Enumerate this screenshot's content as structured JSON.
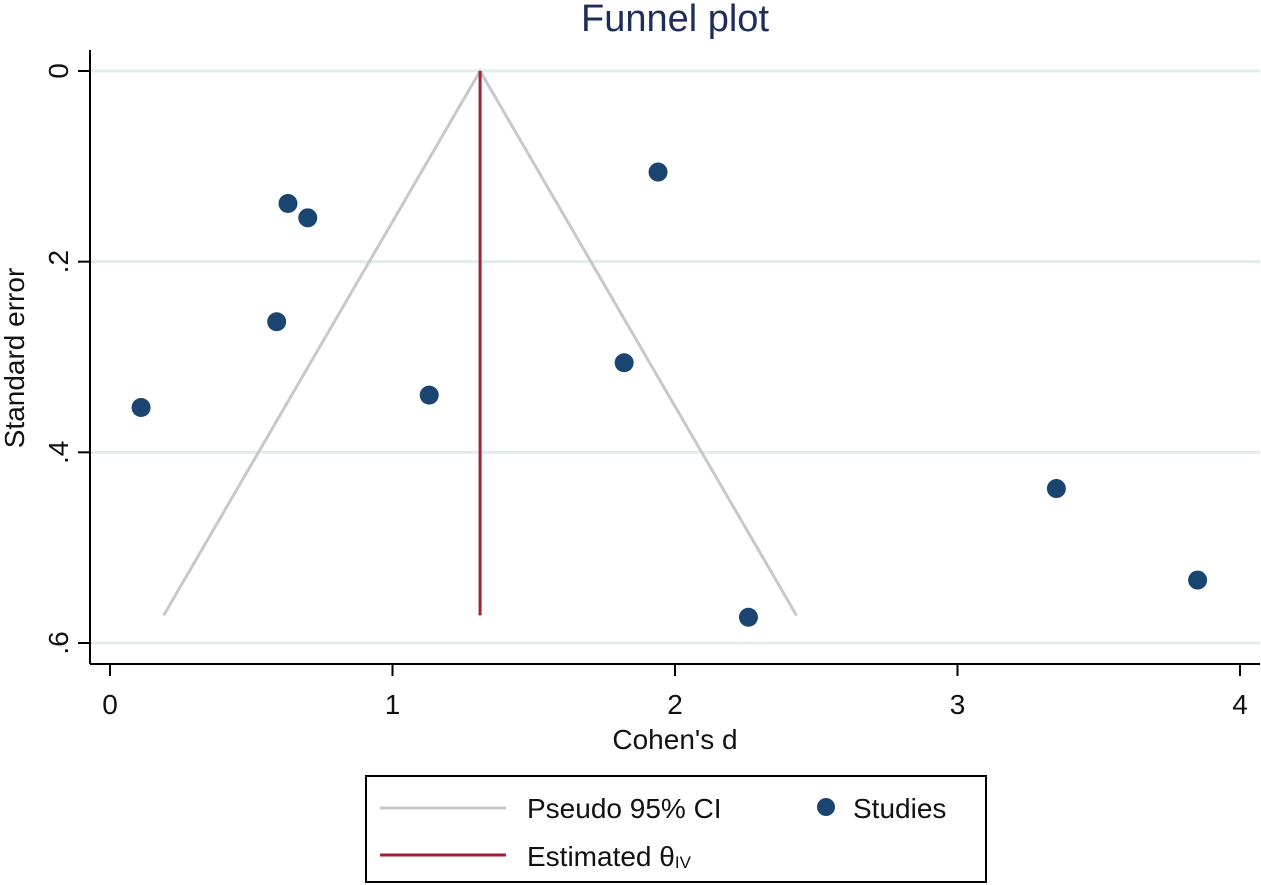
{
  "chart_data": {
    "type": "scatter",
    "title": "Funnel plot",
    "xlabel": "Cohen's d",
    "ylabel": "Standard error",
    "xlim": [
      0,
      4
    ],
    "ylim": [
      0,
      0.6
    ],
    "y_reversed": true,
    "x_ticks": [
      0,
      1,
      2,
      3,
      4
    ],
    "x_tick_labels": [
      "0",
      "1",
      "2",
      "3",
      "4"
    ],
    "y_ticks": [
      0,
      0.2,
      0.4,
      0.6
    ],
    "y_tick_labels": [
      "0",
      ".2",
      ".4",
      ".6"
    ],
    "grid": true,
    "series": [
      {
        "name": "Studies",
        "kind": "scatter",
        "color": "#1a4570",
        "points": [
          {
            "x": 0.11,
            "y": 0.353
          },
          {
            "x": 0.59,
            "y": 0.263
          },
          {
            "x": 0.63,
            "y": 0.139
          },
          {
            "x": 0.7,
            "y": 0.154
          },
          {
            "x": 1.13,
            "y": 0.34
          },
          {
            "x": 1.82,
            "y": 0.306
          },
          {
            "x": 1.94,
            "y": 0.106
          },
          {
            "x": 2.26,
            "y": 0.573
          },
          {
            "x": 3.35,
            "y": 0.438
          },
          {
            "x": 3.85,
            "y": 0.534
          }
        ]
      },
      {
        "name": "Pseudo 95% CI",
        "kind": "line",
        "color": "#c8c8c8",
        "points": [
          {
            "x": 0.19,
            "y": 0.571
          },
          {
            "x": 1.31,
            "y": 0.0
          },
          {
            "x": 2.43,
            "y": 0.571
          }
        ]
      },
      {
        "name": "Estimated θIV",
        "kind": "line",
        "color": "#a41f35",
        "points": [
          {
            "x": 1.31,
            "y": 0.0
          },
          {
            "x": 1.31,
            "y": 0.571
          }
        ]
      }
    ],
    "legend": {
      "position": "bottom-center",
      "entries": [
        {
          "label": "Pseudo 95% CI",
          "kind": "line",
          "color": "#c8c8c8"
        },
        {
          "label": "Studies",
          "kind": "marker",
          "color": "#1a4570"
        },
        {
          "label": "Estimated θ",
          "subscript": "IV",
          "kind": "line",
          "color": "#a41f35"
        }
      ]
    },
    "colors": {
      "grid": "#e3ecec",
      "axis": "#000000",
      "title": "#1f2d5a"
    }
  }
}
